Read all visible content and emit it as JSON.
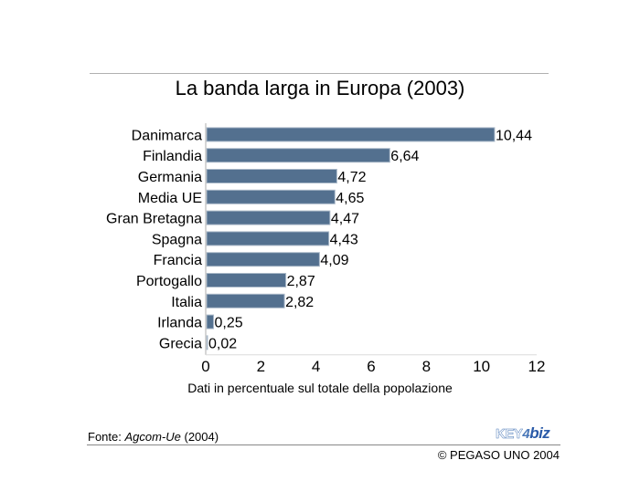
{
  "chart_data": {
    "type": "bar",
    "orientation": "horizontal",
    "title": "La banda larga in Europa (2003)",
    "xlabel": "Dati in percentuale sul totale della popolazione",
    "ylabel": "",
    "xlim": [
      0,
      12
    ],
    "xticks": [
      0,
      2,
      4,
      6,
      8,
      10,
      12
    ],
    "xtick_labels": [
      "0",
      "2",
      "4",
      "6",
      "8",
      "10",
      "12"
    ],
    "grid": false,
    "bar_color": "#53708f",
    "categories": [
      "Danimarca",
      "Finlandia",
      "Germania",
      "Media UE",
      "Gran Bretagna",
      "Spagna",
      "Francia",
      "Portogallo",
      "Italia",
      "Irlanda",
      "Grecia"
    ],
    "values": [
      10.44,
      6.64,
      4.72,
      4.65,
      4.47,
      4.43,
      4.09,
      2.87,
      2.82,
      0.25,
      0.02
    ],
    "value_labels": [
      "10,44",
      "6,64",
      "4,72",
      "4,65",
      "4,47",
      "4,43",
      "4,09",
      "2,87",
      "2,82",
      "0,25",
      "0,02"
    ]
  },
  "footer": {
    "source_prefix": "Fonte: ",
    "source_name": "Agcom-Ue",
    "source_suffix": " (2004)",
    "copyright": "© PEGASO UNO 2004",
    "logo_key": "KEY",
    "logo_four": "4",
    "logo_biz": "biz"
  }
}
